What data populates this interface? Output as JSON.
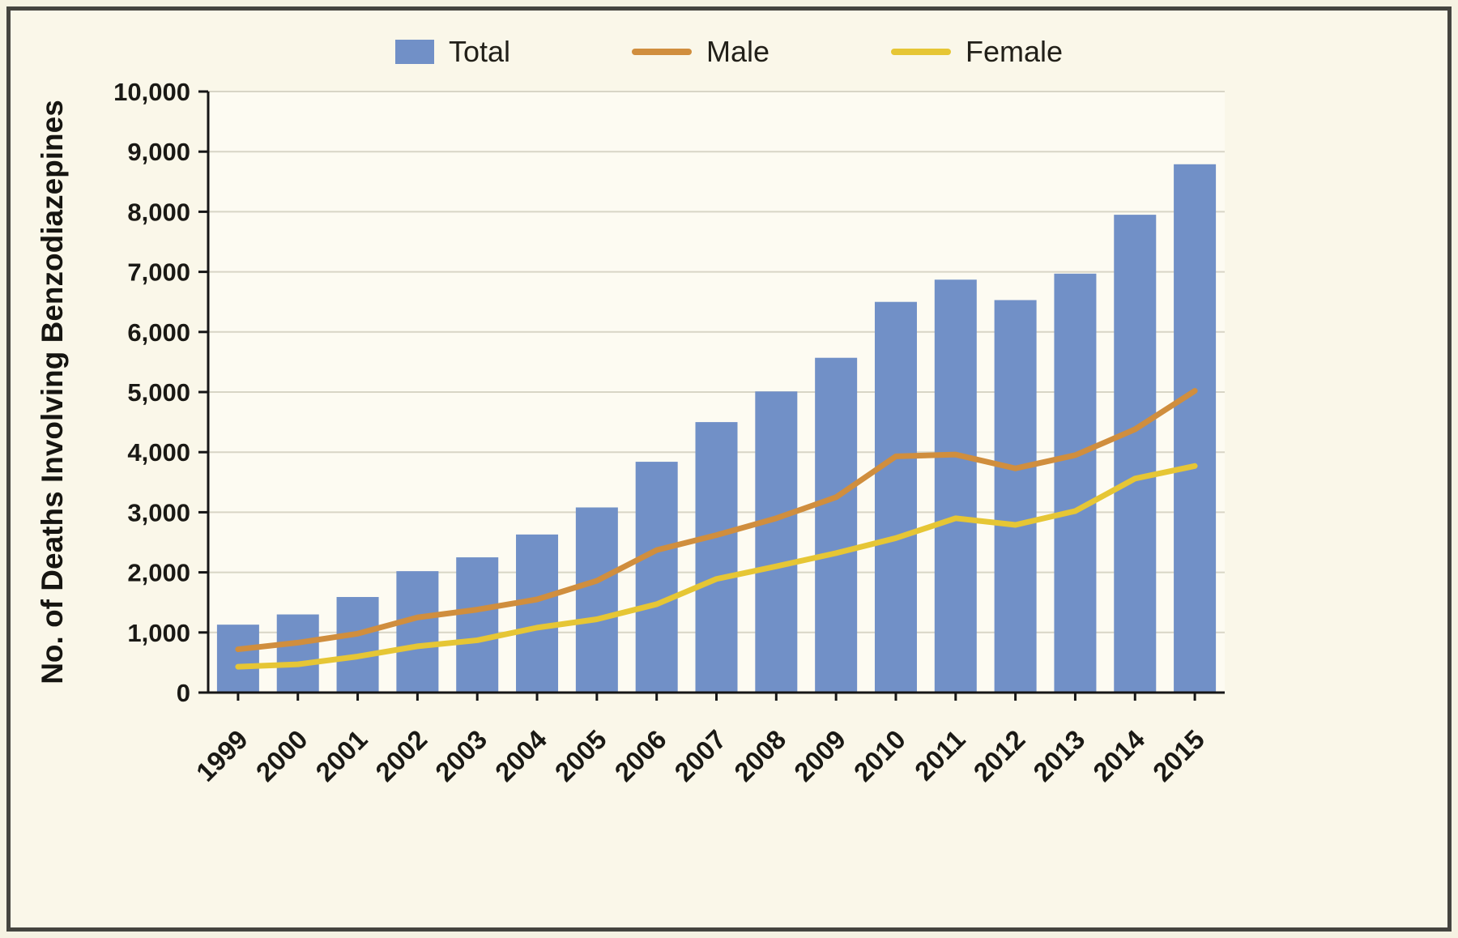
{
  "figure": {
    "y_axis_title": "No. of Deaths Involving Benzodiazepines"
  },
  "colors": {
    "background": "#faf7e9",
    "frame_border": "#45443f",
    "plot_background": "#fdfbf2",
    "gridline": "#d8d5c6",
    "axis": "#161616",
    "bar_blue": "#7190c7",
    "male_orange": "#d08e3e",
    "female_yellow": "#e6c635"
  },
  "chart_data": {
    "type": "bar",
    "title": "",
    "xlabel": "",
    "ylabel": "No. of Deaths Involving Benzodiazepines",
    "ylim": [
      0,
      10000
    ],
    "ytick_step": 1000,
    "grid": true,
    "legend_position": "top",
    "categories": [
      "1999",
      "2000",
      "2001",
      "2002",
      "2003",
      "2004",
      "2005",
      "2006",
      "2007",
      "2008",
      "2009",
      "2010",
      "2011",
      "2012",
      "2013",
      "2014",
      "2015"
    ],
    "series": [
      {
        "name": "Total",
        "type": "bar",
        "color": "#7190c7",
        "values": [
          1130,
          1300,
          1590,
          2020,
          2250,
          2630,
          3080,
          3840,
          4500,
          5010,
          5570,
          6500,
          6870,
          6530,
          6970,
          7950,
          8790
        ]
      },
      {
        "name": "Male",
        "type": "line",
        "color": "#d08e3e",
        "values": [
          720,
          830,
          980,
          1250,
          1380,
          1550,
          1860,
          2370,
          2620,
          2900,
          3250,
          3930,
          3960,
          3730,
          3950,
          4380,
          5020
        ]
      },
      {
        "name": "Female",
        "type": "line",
        "color": "#e6c635",
        "values": [
          430,
          470,
          600,
          770,
          870,
          1080,
          1220,
          1470,
          1890,
          2100,
          2320,
          2570,
          2900,
          2790,
          3020,
          3560,
          3770
        ]
      }
    ]
  }
}
